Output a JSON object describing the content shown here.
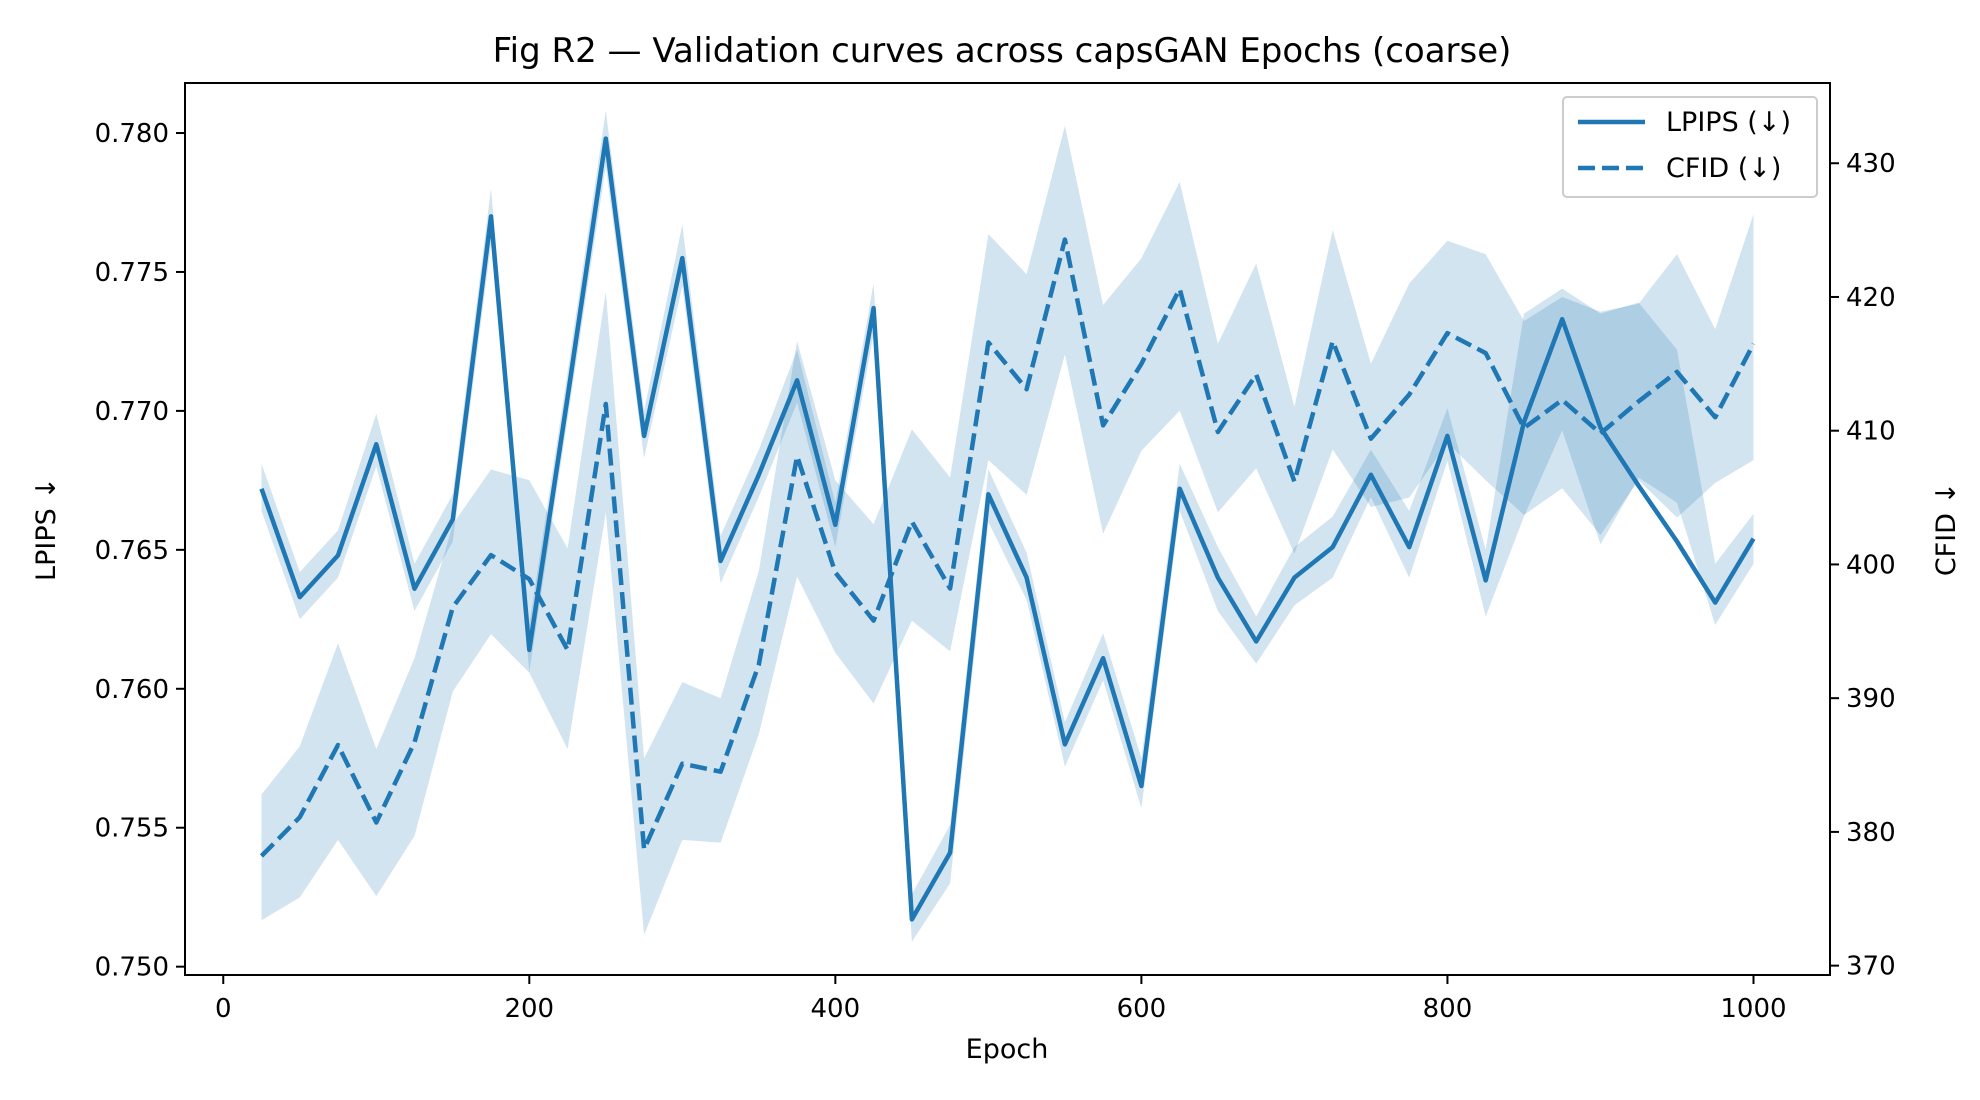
{
  "chart_data": {
    "type": "line",
    "title": "Fig R2 — Validation curves across capsGAN Epochs (coarse)",
    "xlabel": "Epoch",
    "ylabel_left": "LPIPS ↓",
    "ylabel_right": "CFID ↓",
    "xlim": [
      -25,
      1050
    ],
    "ylim_left": [
      0.7497,
      0.7818
    ],
    "ylim_right": [
      369.3,
      436.0
    ],
    "xticks": [
      0,
      200,
      400,
      600,
      800,
      1000
    ],
    "yticks_left": [
      0.75,
      0.755,
      0.76,
      0.765,
      0.77,
      0.775,
      0.78
    ],
    "ytick_labels_left": [
      "0.750",
      "0.755",
      "0.760",
      "0.765",
      "0.770",
      "0.775",
      "0.780"
    ],
    "yticks_right": [
      370,
      380,
      390,
      400,
      410,
      420,
      430
    ],
    "legend_position": "top-right",
    "color": "#1f77b4",
    "x": [
      25,
      50,
      75,
      100,
      125,
      150,
      175,
      200,
      225,
      250,
      275,
      300,
      325,
      350,
      375,
      400,
      425,
      450,
      475,
      500,
      525,
      550,
      575,
      600,
      625,
      650,
      675,
      700,
      725,
      750,
      775,
      800,
      825,
      850,
      875,
      900,
      925,
      950,
      975,
      1000
    ],
    "series": [
      {
        "name": "LPIPS (↓)",
        "axis": "left",
        "style": "solid",
        "values": [
          0.7672,
          0.7633,
          0.7648,
          0.7688,
          0.7636,
          0.7661,
          0.777,
          0.7614,
          0.7705,
          0.7798,
          0.7691,
          0.7755,
          0.7646,
          0.7677,
          0.7711,
          0.7659,
          0.7737,
          0.7517,
          0.7541,
          0.767,
          0.764,
          0.758,
          0.7611,
          0.7565,
          0.7672,
          0.764,
          0.7617,
          0.764,
          0.7651,
          0.7677,
          0.7651,
          0.7691,
          0.7639,
          0.7696,
          0.7733,
          0.7694,
          0.7673,
          0.7653,
          0.7631,
          0.7654
        ],
        "band_lower": [
          0.7664,
          0.7625,
          0.764,
          0.768,
          0.7628,
          0.7653,
          0.776,
          0.7606,
          0.7697,
          0.7788,
          0.7683,
          0.7745,
          0.7638,
          0.7669,
          0.7703,
          0.7651,
          0.7728,
          0.7509,
          0.753,
          0.766,
          0.7632,
          0.7572,
          0.7603,
          0.7557,
          0.7664,
          0.7628,
          0.7609,
          0.763,
          0.764,
          0.7669,
          0.764,
          0.7682,
          0.7626,
          0.7662,
          0.7693,
          0.7652,
          0.7676,
          0.7667,
          0.7623,
          0.7645
        ],
        "band_upper": [
          0.7681,
          0.7642,
          0.7657,
          0.7699,
          0.7645,
          0.767,
          0.778,
          0.7623,
          0.7714,
          0.7808,
          0.77,
          0.7767,
          0.7655,
          0.7686,
          0.7722,
          0.7667,
          0.7746,
          0.7526,
          0.7551,
          0.7679,
          0.7649,
          0.7588,
          0.762,
          0.7575,
          0.7681,
          0.7651,
          0.7626,
          0.7651,
          0.7662,
          0.7686,
          0.7664,
          0.7701,
          0.765,
          0.7735,
          0.7744,
          0.7735,
          0.7739,
          0.7722,
          0.7645,
          0.7663
        ]
      },
      {
        "name": "CFID (↓)",
        "axis": "right",
        "style": "dashed",
        "values": [
          378.2,
          381.1,
          386.5,
          380.7,
          386.7,
          396.8,
          400.7,
          398.9,
          393.6,
          412.0,
          378.7,
          385.1,
          384.5,
          392.5,
          408.1,
          399.4,
          395.8,
          403.2,
          398.2,
          416.6,
          413.1,
          424.3,
          410.4,
          415.0,
          420.6,
          409.9,
          414.2,
          406.2,
          416.7,
          409.4,
          412.7,
          417.3,
          415.8,
          410.2,
          412.3,
          409.8,
          412.2,
          414.4,
          411.0,
          416.5
        ],
        "band_lower": [
          373.4,
          375.1,
          379.4,
          375.2,
          379.7,
          390.5,
          394.8,
          391.9,
          386.2,
          403.9,
          372.3,
          379.4,
          379.2,
          387.3,
          399.1,
          393.4,
          389.6,
          395.8,
          393.5,
          407.8,
          405.2,
          415.7,
          402.3,
          408.5,
          411.5,
          403.9,
          407.2,
          400.8,
          408.6,
          404.3,
          405.0,
          409.1,
          406.3,
          403.7,
          405.7,
          402.2,
          406.3,
          403.5,
          406.1,
          407.8
        ],
        "band_upper": [
          382.8,
          386.4,
          394.1,
          386.2,
          393.0,
          403.0,
          407.1,
          406.3,
          401.2,
          420.4,
          385.5,
          391.2,
          390.0,
          399.5,
          416.7,
          406.3,
          403.0,
          410.1,
          406.5,
          424.7,
          421.7,
          432.8,
          419.4,
          422.9,
          428.6,
          416.5,
          422.5,
          411.8,
          425.0,
          415.0,
          421.0,
          424.2,
          423.2,
          418.2,
          420.0,
          418.9,
          419.5,
          423.2,
          417.6,
          426.2
        ]
      }
    ]
  }
}
